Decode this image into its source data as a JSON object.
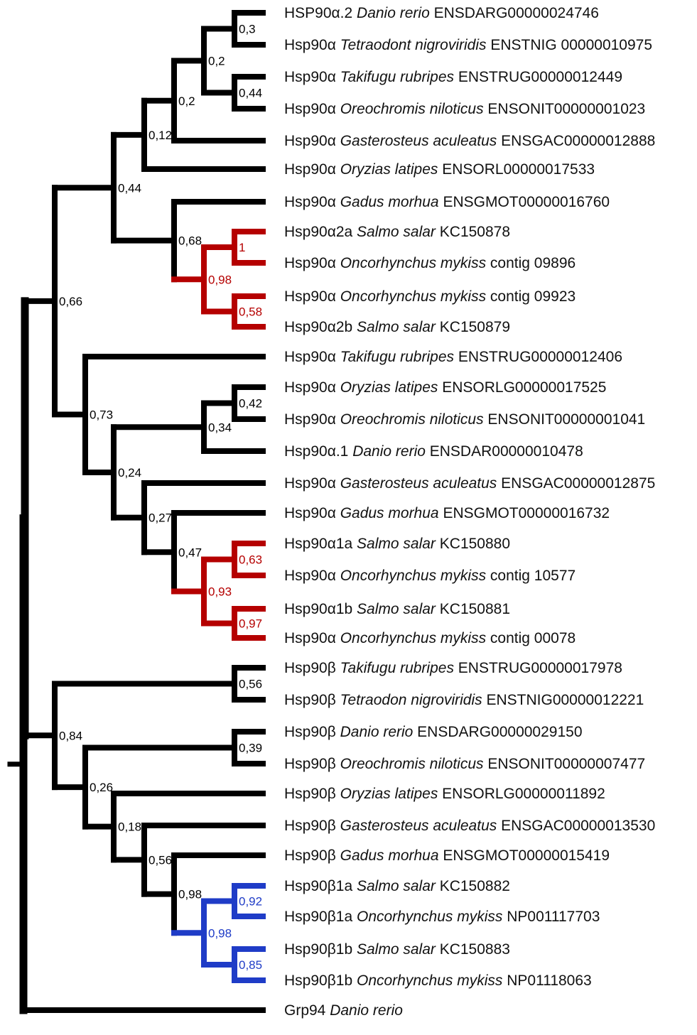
{
  "colors": {
    "default": "#000000",
    "salmonid_alpha": "#b50000",
    "salmonid_beta": "#1f3cc7"
  },
  "taxa": [
    {
      "id": "t1",
      "prefix": "HSP90α.2 ",
      "species": "Danio rerio",
      "suffix": " ENSDARG00000024746"
    },
    {
      "id": "t2",
      "prefix": "Hsp90α ",
      "species": "Tetraodont nigroviridis",
      "suffix": " ENSTNIG 00000010975"
    },
    {
      "id": "t3",
      "prefix": "Hsp90α ",
      "species": "Takifugu rubripes",
      "suffix": " ENSTRUG00000012449"
    },
    {
      "id": "t4",
      "prefix": "Hsp90α ",
      "species": "Oreochromis niloticus",
      "suffix": " ENSONIT00000001023"
    },
    {
      "id": "t5",
      "prefix": "Hsp90α ",
      "species": "Gasterosteus aculeatus",
      "suffix": " ENSGAC00000012888"
    },
    {
      "id": "t6",
      "prefix": "Hsp90α ",
      "species": "Oryzias latipes",
      "suffix": " ENSORL00000017533"
    },
    {
      "id": "t7",
      "prefix": "Hsp90α ",
      "species": "Gadus morhua",
      "suffix": " ENSGMOT00000016760"
    },
    {
      "id": "t8",
      "prefix": "Hsp90α2a ",
      "species": "Salmo salar",
      "suffix": " KC150878"
    },
    {
      "id": "t9",
      "prefix": "Hsp90α ",
      "species": "Oncorhynchus mykiss",
      "suffix": " contig 09896"
    },
    {
      "id": "t10",
      "prefix": "Hsp90α ",
      "species": "Oncorhynchus mykiss",
      "suffix": " contig 09923"
    },
    {
      "id": "t11",
      "prefix": "Hsp90α2b ",
      "species": "Salmo salar",
      "suffix": " KC150879"
    },
    {
      "id": "t12",
      "prefix": "Hsp90α ",
      "species": "Takifugu rubripes",
      "suffix": " ENSTRUG00000012406"
    },
    {
      "id": "t13",
      "prefix": "Hsp90α ",
      "species": "Oryzias latipes",
      "suffix": " ENSORLG00000017525"
    },
    {
      "id": "t14",
      "prefix": "Hsp90α ",
      "species": "Oreochromis niloticus",
      "suffix": " ENSONIT00000001041"
    },
    {
      "id": "t15",
      "prefix": "Hsp90α.1 ",
      "species": "Danio rerio",
      "suffix": " ENSDAR00000010478"
    },
    {
      "id": "t16",
      "prefix": "Hsp90α ",
      "species": "Gasterosteus aculeatus",
      "suffix": " ENSGAC00000012875"
    },
    {
      "id": "t17",
      "prefix": "Hsp90α ",
      "species": "Gadus morhua",
      "suffix": " ENSGMOT00000016732"
    },
    {
      "id": "t18",
      "prefix": "Hsp90α1a ",
      "species": "Salmo salar",
      "suffix": " KC150880"
    },
    {
      "id": "t19",
      "prefix": "Hsp90α ",
      "species": "Oncorhynchus mykiss",
      "suffix": " contig 10577"
    },
    {
      "id": "t20",
      "prefix": "Hsp90α1b ",
      "species": "Salmo salar",
      "suffix": " KC150881"
    },
    {
      "id": "t21",
      "prefix": "Hsp90α ",
      "species": "Oncorhynchus mykiss",
      "suffix": " contig 00078"
    },
    {
      "id": "t22",
      "prefix": "Hsp90β ",
      "species": "Takifugu rubripes",
      "suffix": " ENSTRUG00000017978"
    },
    {
      "id": "t23",
      "prefix": "Hsp90β ",
      "species": "Tetraodon nigroviridis",
      "suffix": " ENSTNIG00000012221"
    },
    {
      "id": "t24",
      "prefix": "Hsp90β ",
      "species": "Danio rerio",
      "suffix": " ENSDARG00000029150"
    },
    {
      "id": "t25",
      "prefix": "Hsp90β ",
      "species": "Oreochromis niloticus",
      "suffix": " ENSONIT00000007477"
    },
    {
      "id": "t26",
      "prefix": "Hsp90β ",
      "species": "Oryzias latipes",
      "suffix": " ENSORLG00000011892"
    },
    {
      "id": "t27",
      "prefix": "Hsp90β ",
      "species": "Gasterosteus aculeatus",
      "suffix": " ENSGAC00000013530"
    },
    {
      "id": "t28",
      "prefix": "Hsp90β ",
      "species": "Gadus morhua",
      "suffix": " ENSGMOT00000015419"
    },
    {
      "id": "t29",
      "prefix": "Hsp90β1a ",
      "species": "Salmo salar",
      "suffix": " KC150882"
    },
    {
      "id": "t30",
      "prefix": "Hsp90β1a ",
      "species": "Oncorhynchus mykiss",
      "suffix": " NP001117703"
    },
    {
      "id": "t31",
      "prefix": "Hsp90β1b ",
      "species": "Salmo salar",
      "suffix": " KC150883"
    },
    {
      "id": "t32",
      "prefix": "Hsp90β1b ",
      "species": "Oncorhynchus mykiss",
      "suffix": " NP01118063"
    },
    {
      "id": "t33",
      "prefix": "Grp94 ",
      "species": "Danio rerio",
      "suffix": ""
    }
  ],
  "nodes": [
    {
      "id": "n_root",
      "children": [
        "n_main",
        "t33"
      ]
    },
    {
      "id": "n_main",
      "children": [
        "n_alpha",
        "n_beta"
      ]
    },
    {
      "id": "n_alpha",
      "support": "0,66",
      "children": [
        "n_a1",
        "n_a2"
      ]
    },
    {
      "id": "n_a1",
      "support": "0,44",
      "children": [
        "n_a1x",
        "n_a1y"
      ]
    },
    {
      "id": "n_a1x",
      "support": "0,12",
      "children": [
        "n_a1x2",
        "t6"
      ]
    },
    {
      "id": "n_a1x2",
      "support": "0,2",
      "children": [
        "n_a1x3",
        "t5"
      ]
    },
    {
      "id": "n_a1x3",
      "support": "0,2",
      "children": [
        "n_p1",
        "n_p2"
      ]
    },
    {
      "id": "n_p1",
      "support": "0,3",
      "children": [
        "t1",
        "t2"
      ]
    },
    {
      "id": "n_p2",
      "support": "0,44",
      "children": [
        "t3",
        "t4"
      ]
    },
    {
      "id": "n_a1y",
      "support": "0,68",
      "children": [
        "t7",
        "n_s1"
      ]
    },
    {
      "id": "n_s1",
      "support": "0,98",
      "group": "salmonid_alpha",
      "children": [
        "n_s1a",
        "n_s1b"
      ]
    },
    {
      "id": "n_s1a",
      "support": "1",
      "group": "salmonid_alpha",
      "children": [
        "t8",
        "t9"
      ]
    },
    {
      "id": "n_s1b",
      "support": "0,58",
      "group": "salmonid_alpha",
      "children": [
        "t10",
        "t11"
      ]
    },
    {
      "id": "n_a2",
      "support": "0,73",
      "children": [
        "t12",
        "n_a2x"
      ]
    },
    {
      "id": "n_a2x",
      "support": "0,24",
      "children": [
        "n_a2a",
        "n_a2b"
      ]
    },
    {
      "id": "n_a2a",
      "support": "0,34",
      "children": [
        "n_p3",
        "t15"
      ]
    },
    {
      "id": "n_p3",
      "support": "0,42",
      "children": [
        "t13",
        "t14"
      ]
    },
    {
      "id": "n_a2b",
      "support": "0,27",
      "children": [
        "t16",
        "n_a2c"
      ]
    },
    {
      "id": "n_a2c",
      "support": "0,47",
      "children": [
        "t17",
        "n_s2"
      ]
    },
    {
      "id": "n_s2",
      "support": "0,93",
      "group": "salmonid_alpha",
      "children": [
        "n_s2a",
        "n_s2b"
      ]
    },
    {
      "id": "n_s2a",
      "support": "0,63",
      "group": "salmonid_alpha",
      "children": [
        "t18",
        "t19"
      ]
    },
    {
      "id": "n_s2b",
      "support": "0,97",
      "group": "salmonid_alpha",
      "children": [
        "t20",
        "t21"
      ]
    },
    {
      "id": "n_beta",
      "support": "0,84",
      "children": [
        "n_p5",
        "n_b1"
      ]
    },
    {
      "id": "n_p5",
      "support": "0,56",
      "children": [
        "t22",
        "t23"
      ]
    },
    {
      "id": "n_b1",
      "support": "0,26",
      "children": [
        "n_p6",
        "n_b2"
      ]
    },
    {
      "id": "n_p6",
      "support": "0,39",
      "children": [
        "t24",
        "t25"
      ]
    },
    {
      "id": "n_b2",
      "support": "0,18",
      "children": [
        "t26",
        "n_b3"
      ]
    },
    {
      "id": "n_b3",
      "support": "0,56",
      "children": [
        "t27",
        "n_b4"
      ]
    },
    {
      "id": "n_b4",
      "support": "0,98",
      "children": [
        "t28",
        "n_s3"
      ]
    },
    {
      "id": "n_s3",
      "support": "0,98",
      "group": "salmonid_beta",
      "children": [
        "n_s3a",
        "n_s3b"
      ]
    },
    {
      "id": "n_s3a",
      "support": "0,92",
      "group": "salmonid_beta",
      "children": [
        "t29",
        "t30"
      ]
    },
    {
      "id": "n_s3b",
      "support": "0,85",
      "group": "salmonid_beta",
      "children": [
        "t31",
        "t32"
      ]
    }
  ]
}
